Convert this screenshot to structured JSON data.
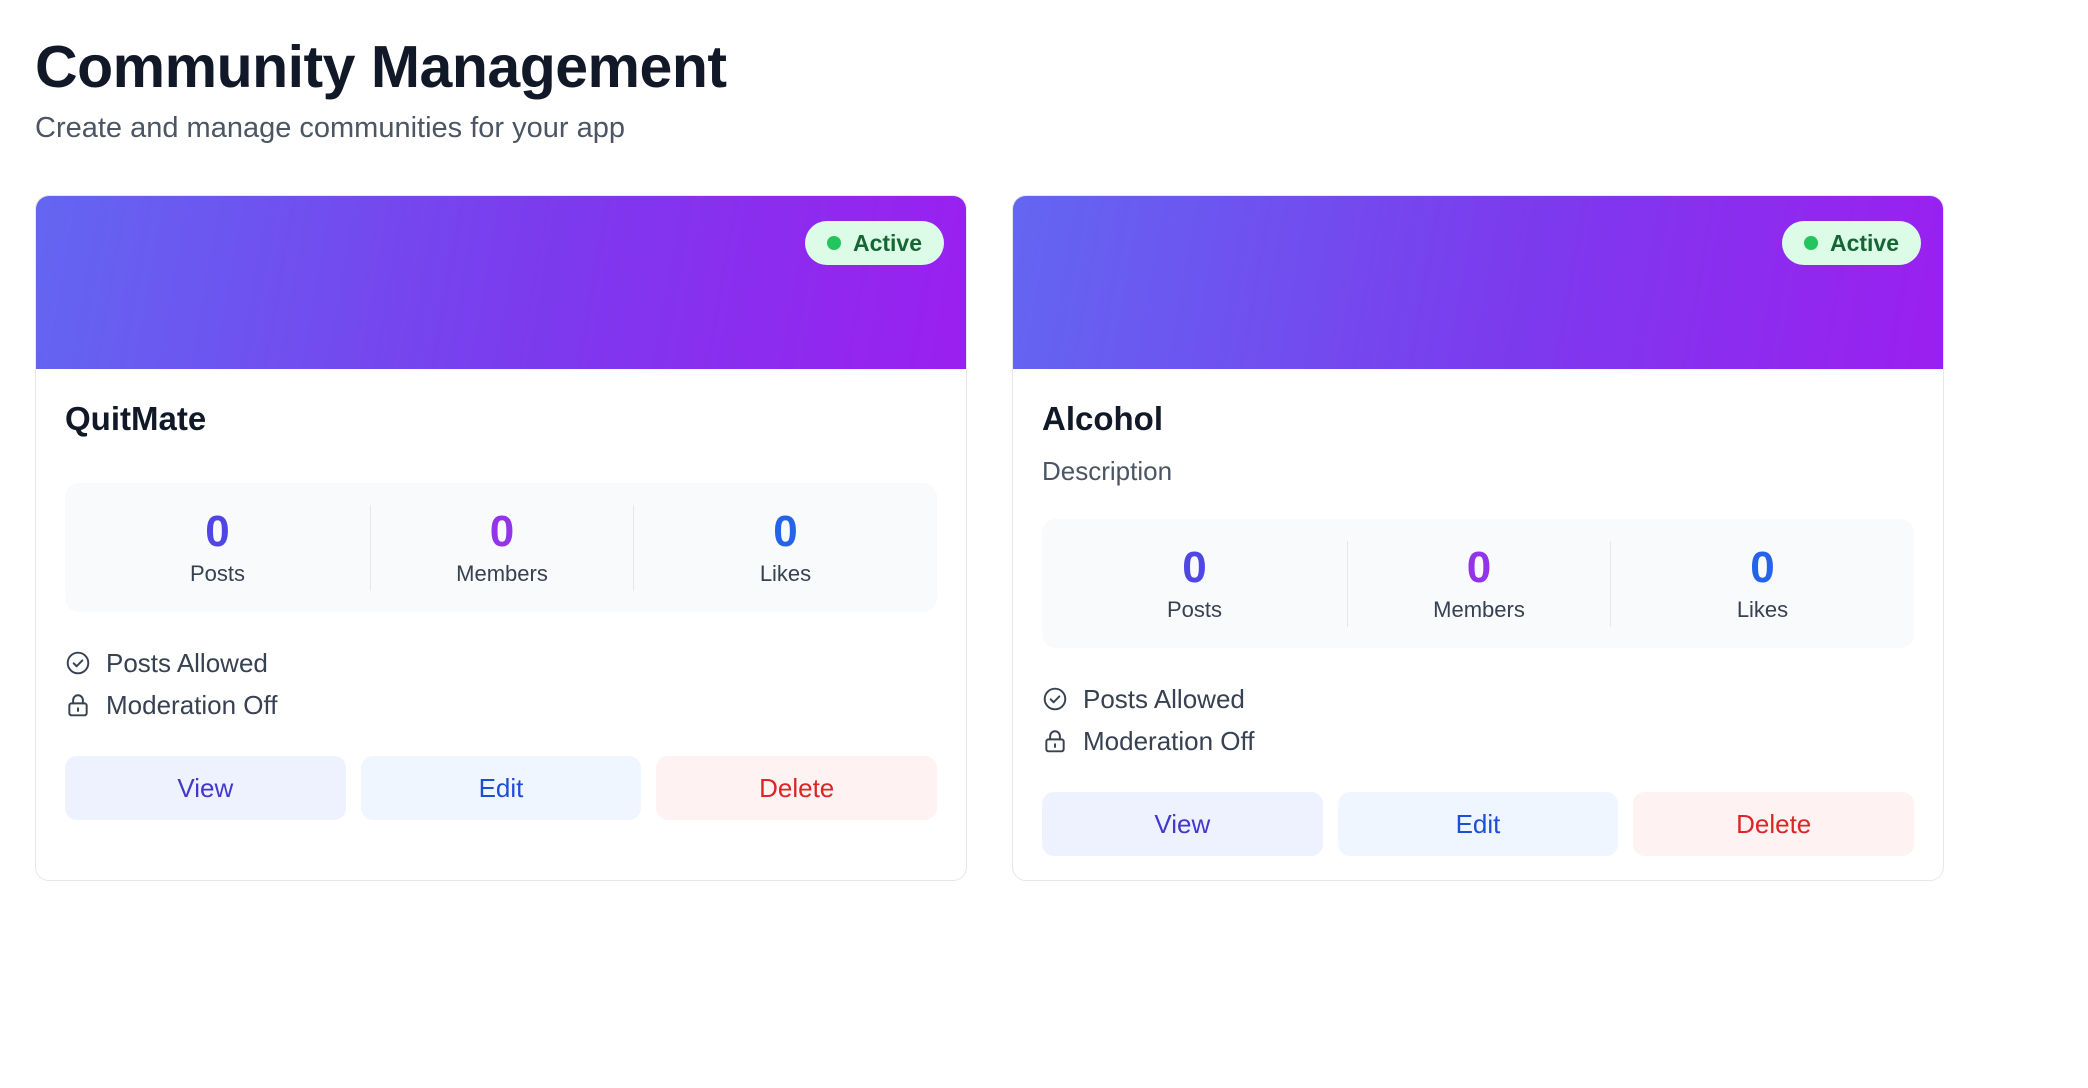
{
  "header": {
    "title": "Community Management",
    "subtitle": "Create and manage communities for your app"
  },
  "colors": {
    "banner_gradient_start": "#6366f1",
    "banner_gradient_end": "#9b1ff0",
    "active_badge_bg": "#dcfce7",
    "active_dot": "#22c55e"
  },
  "communities": [
    {
      "name": "QuitMate",
      "description": "",
      "status": "Active",
      "stats": {
        "posts_value": "0",
        "posts_label": "Posts",
        "members_value": "0",
        "members_label": "Members",
        "likes_value": "0",
        "likes_label": "Likes"
      },
      "features": {
        "posts": "Posts Allowed",
        "posts_icon": "check-circle-icon",
        "moderation": "Moderation Off",
        "moderation_icon": "lock-icon"
      },
      "actions": {
        "view": "View",
        "edit": "Edit",
        "delete": "Delete"
      }
    },
    {
      "name": "Alcohol",
      "description": "Description",
      "status": "Active",
      "stats": {
        "posts_value": "0",
        "posts_label": "Posts",
        "members_value": "0",
        "members_label": "Members",
        "likes_value": "0",
        "likes_label": "Likes"
      },
      "features": {
        "posts": "Posts Allowed",
        "posts_icon": "check-circle-icon",
        "moderation": "Moderation Off",
        "moderation_icon": "lock-icon"
      },
      "actions": {
        "view": "View",
        "edit": "Edit",
        "delete": "Delete"
      }
    }
  ]
}
